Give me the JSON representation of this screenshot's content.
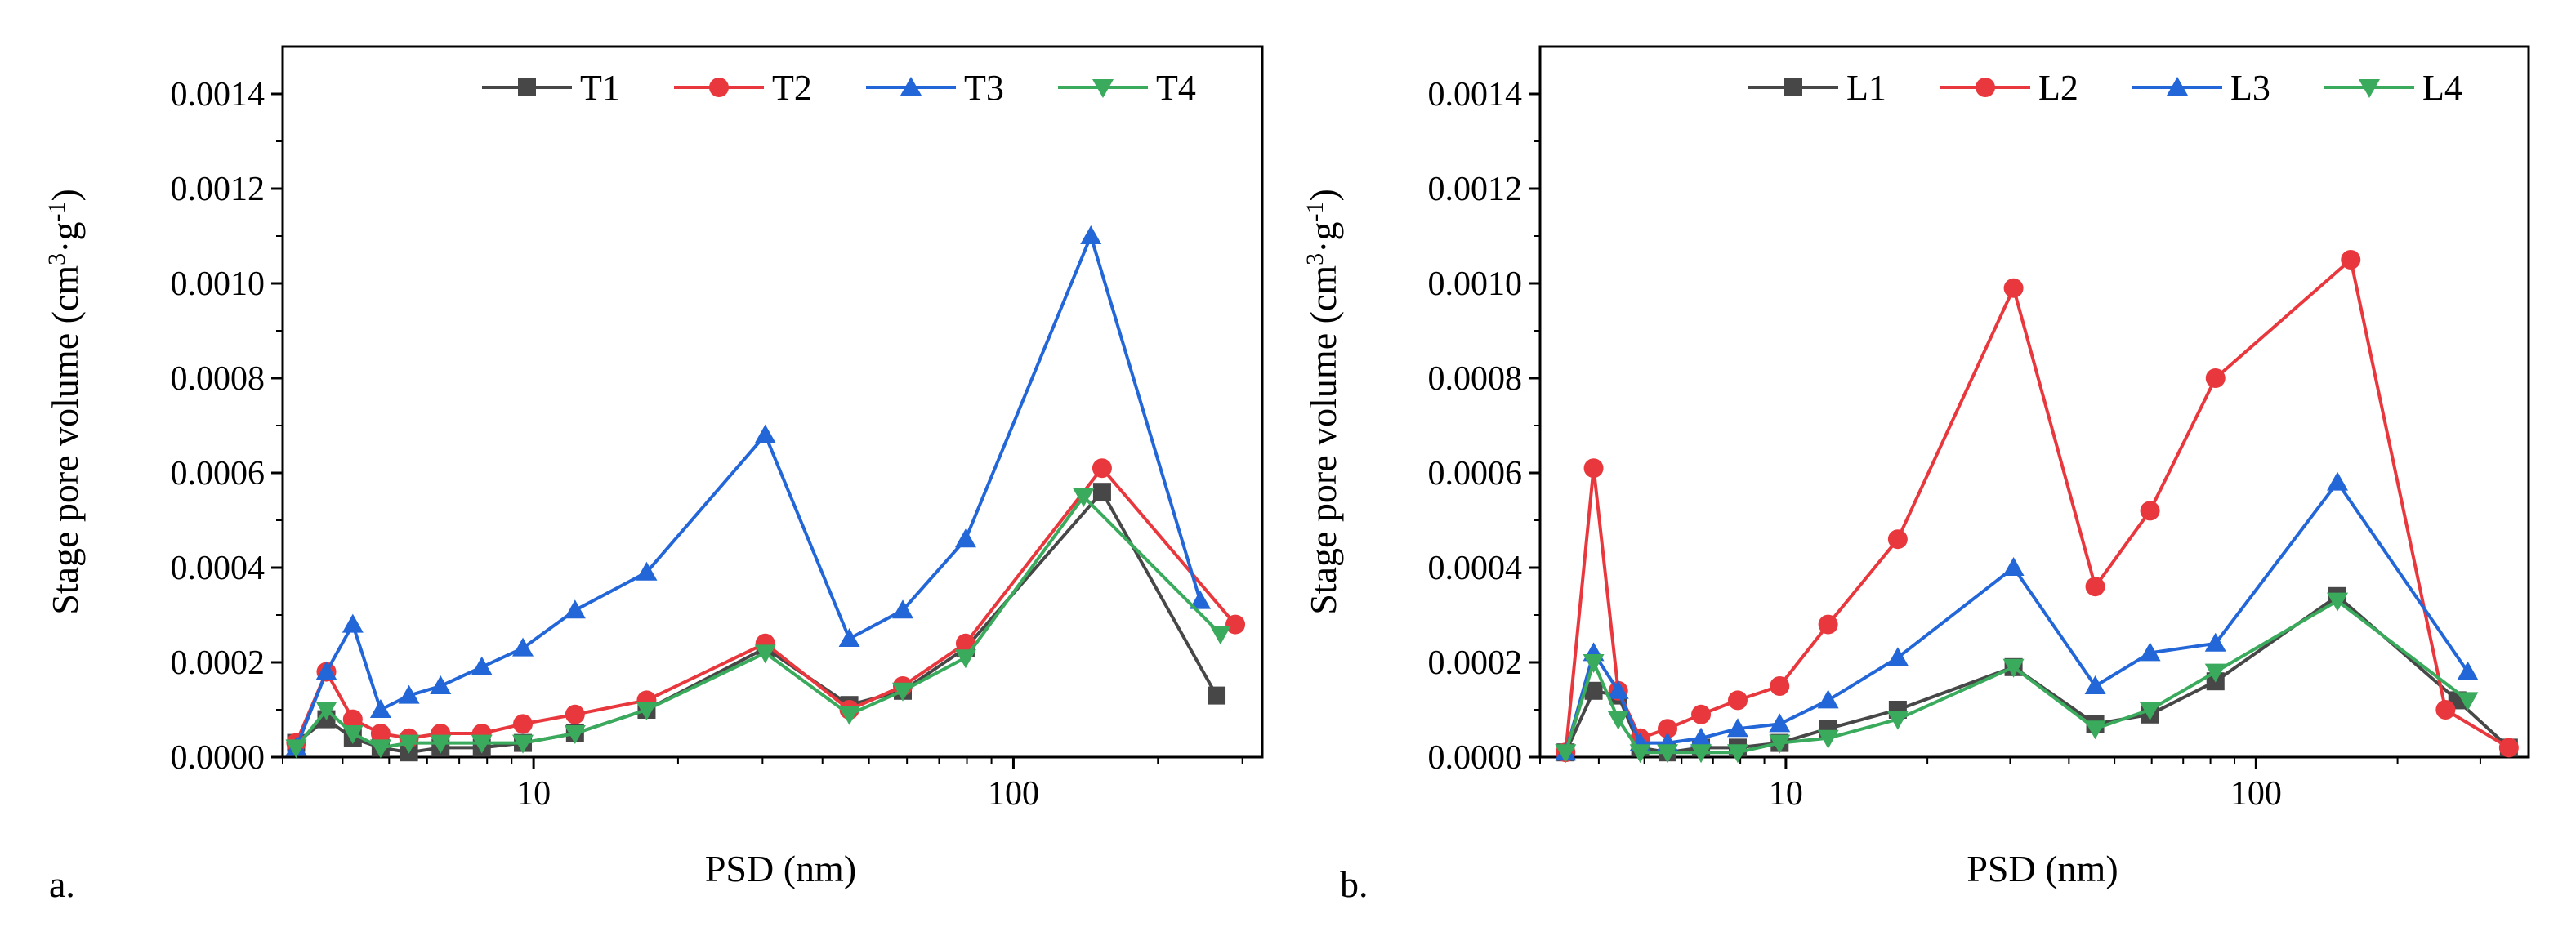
{
  "chart_data": [
    {
      "type": "line",
      "panel_label": "a.",
      "xlabel": "PSD (nm)",
      "ylabel_main": "Stage pore volume (cm",
      "ylabel_sup1": "3",
      "ylabel_mid": "·g",
      "ylabel_sup2": "-1",
      "ylabel_end": ")",
      "xscale": "log",
      "xlim": [
        3.0,
        330
      ],
      "ylim": [
        0,
        0.0015
      ],
      "x_ticks": [
        {
          "v": 10,
          "label": "10"
        },
        {
          "v": 100,
          "label": "100"
        }
      ],
      "y_ticks": [
        {
          "v": 0,
          "label": "0.0000"
        },
        {
          "v": 0.0002,
          "label": "0.0002"
        },
        {
          "v": 0.0004,
          "label": "0.0004"
        },
        {
          "v": 0.0006,
          "label": "0.0006"
        },
        {
          "v": 0.0008,
          "label": "0.0008"
        },
        {
          "v": 0.001,
          "label": "0.0010"
        },
        {
          "v": 0.0012,
          "label": "0.0012"
        },
        {
          "v": 0.0014,
          "label": "0.0014"
        }
      ],
      "legend_position": "top-right",
      "series": [
        {
          "name": "T1",
          "color": "#474747",
          "marker": "square",
          "x": [
            3.2,
            3.7,
            4.2,
            4.8,
            5.5,
            6.4,
            7.8,
            9.5,
            12.2,
            17.2,
            30.4,
            45.5,
            58.8,
            79.5,
            153,
            265
          ],
          "y": [
            3e-05,
            8e-05,
            4e-05,
            2e-05,
            1e-05,
            2e-05,
            2e-05,
            3e-05,
            5e-05,
            0.0001,
            0.00023,
            0.00011,
            0.00014,
            0.00023,
            0.00056,
            0.00013
          ]
        },
        {
          "name": "T2",
          "color": "#e8383d",
          "marker": "circle",
          "x": [
            3.2,
            3.7,
            4.2,
            4.8,
            5.5,
            6.4,
            7.8,
            9.5,
            12.2,
            17.2,
            30.4,
            45.5,
            58.8,
            79.5,
            153,
            290
          ],
          "y": [
            3e-05,
            0.00018,
            8e-05,
            5e-05,
            4e-05,
            5e-05,
            5e-05,
            7e-05,
            9e-05,
            0.00012,
            0.00024,
            0.0001,
            0.00015,
            0.00024,
            0.00061,
            0.00028
          ]
        },
        {
          "name": "T3",
          "color": "#2266d8",
          "marker": "triangle-up",
          "x": [
            3.2,
            3.7,
            4.2,
            4.8,
            5.5,
            6.4,
            7.8,
            9.5,
            12.2,
            17.2,
            30.4,
            45.5,
            58.8,
            79.5,
            145,
            245
          ],
          "y": [
            2e-05,
            0.00018,
            0.00028,
            0.0001,
            0.00013,
            0.00015,
            0.00019,
            0.00023,
            0.00031,
            0.00039,
            0.00068,
            0.00025,
            0.00031,
            0.00046,
            0.0011,
            0.00033
          ]
        },
        {
          "name": "T4",
          "color": "#3aaa5c",
          "marker": "triangle-down",
          "x": [
            3.2,
            3.7,
            4.2,
            4.8,
            5.5,
            6.4,
            7.8,
            9.5,
            12.2,
            17.2,
            30.4,
            45.5,
            58.8,
            79.5,
            140,
            270
          ],
          "y": [
            2e-05,
            0.0001,
            5e-05,
            2e-05,
            3e-05,
            3e-05,
            3e-05,
            3e-05,
            5e-05,
            0.0001,
            0.00022,
            9e-05,
            0.00014,
            0.00021,
            0.00055,
            0.00026
          ]
        }
      ]
    },
    {
      "type": "line",
      "panel_label": "b.",
      "xlabel": "PSD (nm)",
      "ylabel_main": "Stage pore volume (cm",
      "ylabel_sup1": "3",
      "ylabel_mid": "·g",
      "ylabel_sup2": "-1",
      "ylabel_end": ")",
      "xscale": "log",
      "xlim": [
        3.0,
        380
      ],
      "ylim": [
        0,
        0.0015
      ],
      "x_ticks": [
        {
          "v": 10,
          "label": "10"
        },
        {
          "v": 100,
          "label": "100"
        }
      ],
      "y_ticks": [
        {
          "v": 0,
          "label": "0.0000"
        },
        {
          "v": 0.0002,
          "label": "0.0002"
        },
        {
          "v": 0.0004,
          "label": "0.0004"
        },
        {
          "v": 0.0006,
          "label": "0.0006"
        },
        {
          "v": 0.0008,
          "label": "0.0008"
        },
        {
          "v": 0.001,
          "label": "0.0010"
        },
        {
          "v": 0.0012,
          "label": "0.0012"
        },
        {
          "v": 0.0014,
          "label": "0.0014"
        }
      ],
      "legend_position": "top-right",
      "series": [
        {
          "name": "L1",
          "color": "#474747",
          "marker": "square",
          "x": [
            3.4,
            3.9,
            4.4,
            4.9,
            5.6,
            6.6,
            7.9,
            9.7,
            12.3,
            17.3,
            30.5,
            45.5,
            59.5,
            82,
            149,
            268,
            345
          ],
          "y": [
            1e-05,
            0.00014,
            0.00013,
            2e-05,
            1e-05,
            2e-05,
            2e-05,
            3e-05,
            6e-05,
            0.0001,
            0.00019,
            7e-05,
            9e-05,
            0.00016,
            0.00034,
            0.00012,
            2e-05
          ]
        },
        {
          "name": "L2",
          "color": "#e8383d",
          "marker": "circle",
          "x": [
            3.4,
            3.9,
            4.4,
            4.9,
            5.6,
            6.6,
            7.9,
            9.7,
            12.3,
            17.3,
            30.5,
            45.5,
            59.5,
            82,
            159,
            253,
            345
          ],
          "y": [
            1e-05,
            0.00061,
            0.00014,
            4e-05,
            6e-05,
            9e-05,
            0.00012,
            0.00015,
            0.00028,
            0.00046,
            0.00099,
            0.00036,
            0.00052,
            0.0008,
            0.00105,
            0.0001,
            2e-05
          ]
        },
        {
          "name": "L3",
          "color": "#2266d8",
          "marker": "triangle-up",
          "x": [
            3.4,
            3.9,
            4.4,
            4.9,
            5.6,
            6.6,
            7.9,
            9.7,
            12.3,
            17.3,
            30.5,
            45.5,
            59.5,
            82,
            149,
            282
          ],
          "y": [
            1e-05,
            0.00022,
            0.00014,
            3e-05,
            3e-05,
            4e-05,
            6e-05,
            7e-05,
            0.00012,
            0.00021,
            0.0004,
            0.00015,
            0.00022,
            0.00024,
            0.00058,
            0.00018
          ]
        },
        {
          "name": "L4",
          "color": "#3aaa5c",
          "marker": "triangle-down",
          "x": [
            3.4,
            3.9,
            4.4,
            4.9,
            5.6,
            6.6,
            7.9,
            9.7,
            12.3,
            17.3,
            30.5,
            45.5,
            59.5,
            82,
            149,
            282
          ],
          "y": [
            1e-05,
            0.0002,
            8e-05,
            1e-05,
            1e-05,
            1e-05,
            1e-05,
            3e-05,
            4e-05,
            8e-05,
            0.00019,
            6e-05,
            0.0001,
            0.00018,
            0.00033,
            0.00012
          ]
        }
      ]
    }
  ]
}
